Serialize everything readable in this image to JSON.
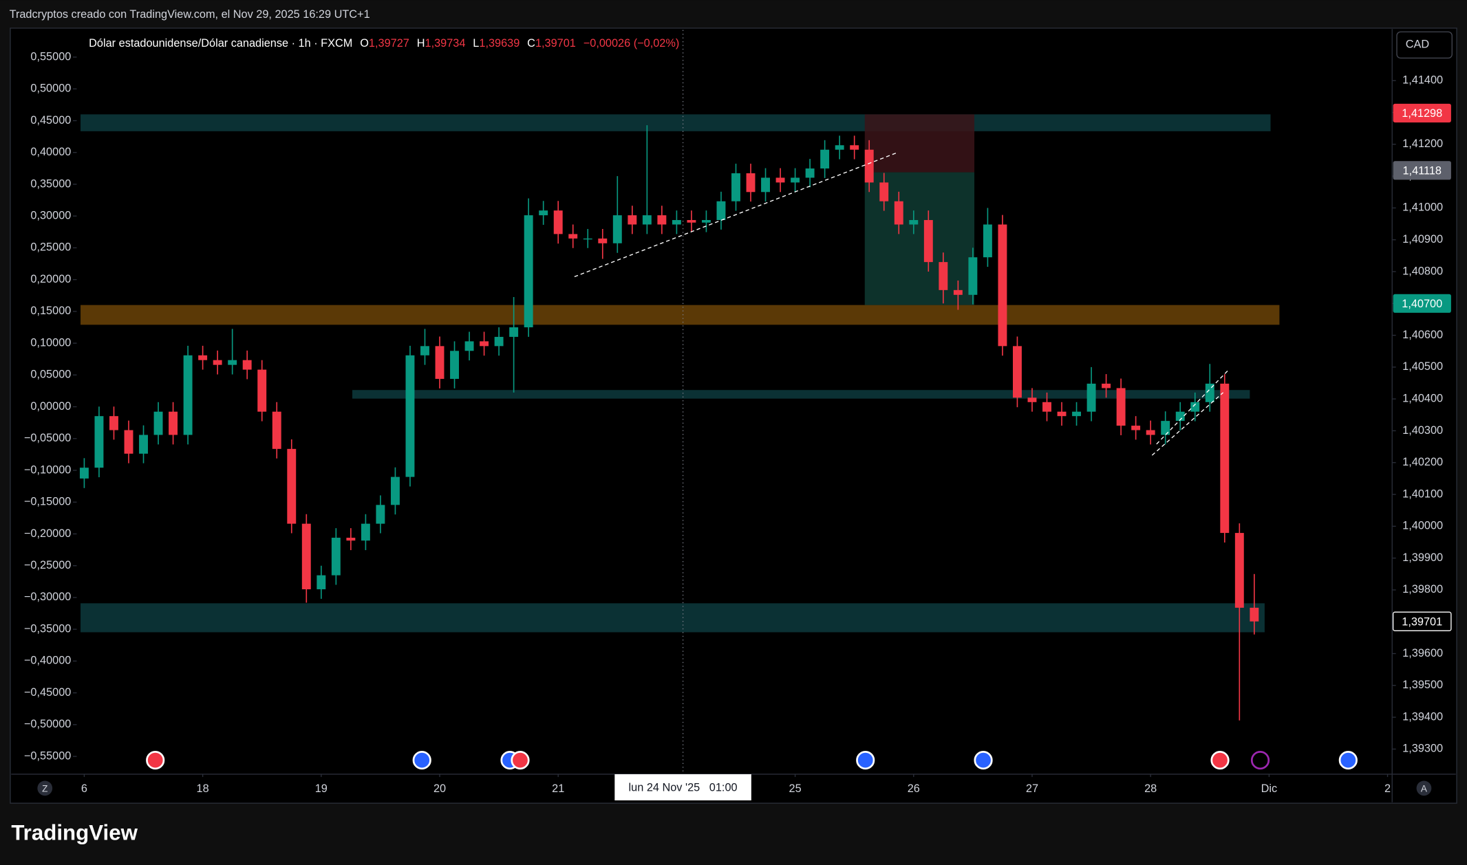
{
  "watermark": "Tradcryptos creado con TradingView.com, el Nov 29, 2025 16:29 UTC+1",
  "brand": "TradingView",
  "chart_data": {
    "type": "candlestick",
    "title": "Dólar estadounidense/Dólar canadiense · 1h · FXCM",
    "ohlc": [
      {
        "key": "O",
        "value": 1.39727,
        "label": "1,39727"
      },
      {
        "key": "H",
        "value": 1.39734,
        "label": "1,39734"
      },
      {
        "key": "L",
        "value": 1.39639,
        "label": "1,39639"
      },
      {
        "key": "C",
        "value": 1.39701,
        "label": "1,39701"
      }
    ],
    "change": "−0,00026 (−0,02%)",
    "currency": "CAD",
    "crosshair_label": "lun 24 Nov '25   01:00",
    "up_color": "#089981",
    "down_color": "#f23645",
    "grid": false,
    "open": [
      1.4015,
      1.40184,
      1.40346,
      1.40302,
      1.40228,
      1.40287,
      1.4036,
      1.40287,
      1.40537,
      1.40522,
      1.40507,
      1.40522,
      1.40492,
      1.4036,
      1.40243,
      1.40008,
      1.39802,
      1.39846,
      1.39964,
      1.39955,
      1.40008,
      1.40067,
      1.40155,
      1.40537,
      1.40566,
      1.40463,
      1.40551,
      1.40581,
      1.40566,
      1.40595,
      1.40625,
      1.40977,
      1.40992,
      1.40918,
      1.40904,
      1.40904,
      1.40889,
      1.40977,
      1.40948,
      1.40977,
      1.40948,
      1.40962,
      1.40954,
      1.40962,
      1.41021,
      1.41109,
      1.4105,
      1.41095,
      1.4108,
      1.41095,
      1.41124,
      1.41183,
      1.41197,
      1.41183,
      1.4108,
      1.41021,
      1.40948,
      1.40962,
      1.4083,
      1.40742,
      1.40727,
      1.40845,
      1.40948,
      1.40566,
      1.40404,
      1.4039,
      1.4036,
      1.40346,
      1.4036,
      1.40448,
      1.40434,
      1.40316,
      1.40302,
      1.40287,
      1.40331,
      1.4036,
      1.4039,
      1.40448,
      1.39979,
      1.39744
    ],
    "high": [
      1.40214,
      1.40376,
      1.40376,
      1.40332,
      1.40317,
      1.4039,
      1.4039,
      1.40567,
      1.40567,
      1.40552,
      1.4062,
      1.40552,
      1.40522,
      1.4039,
      1.40273,
      1.40038,
      1.39876,
      1.39994,
      1.39994,
      1.40038,
      1.40097,
      1.40185,
      1.40567,
      1.4062,
      1.40596,
      1.40581,
      1.40611,
      1.40611,
      1.40625,
      1.4072,
      1.4103,
      1.41022,
      1.41022,
      1.40948,
      1.40934,
      1.40934,
      1.411,
      1.41007,
      1.4126,
      1.41007,
      1.40992,
      1.40992,
      1.40992,
      1.41051,
      1.41139,
      1.41139,
      1.41125,
      1.41125,
      1.41125,
      1.41154,
      1.41213,
      1.41227,
      1.41227,
      1.41213,
      1.4111,
      1.41051,
      1.40992,
      1.40992,
      1.4086,
      1.40772,
      1.40875,
      1.41,
      1.40978,
      1.40596,
      1.40434,
      1.4042,
      1.4039,
      1.4039,
      1.405,
      1.40478,
      1.40464,
      1.40346,
      1.40332,
      1.40361,
      1.4039,
      1.4042,
      1.4051,
      1.40478,
      1.40009,
      1.3985
    ],
    "low": [
      1.4012,
      1.40154,
      1.40272,
      1.40198,
      1.40198,
      1.40257,
      1.40257,
      1.40257,
      1.40492,
      1.40477,
      1.40477,
      1.40462,
      1.4033,
      1.40213,
      1.39978,
      1.3976,
      1.39772,
      1.39816,
      1.39925,
      1.39925,
      1.39978,
      1.40037,
      1.40125,
      1.40507,
      1.40433,
      1.40433,
      1.40521,
      1.40536,
      1.40536,
      1.4042,
      1.40595,
      1.40947,
      1.40888,
      1.40874,
      1.40874,
      1.4084,
      1.40859,
      1.40918,
      1.40918,
      1.40918,
      1.40918,
      1.40924,
      1.40924,
      1.40932,
      1.40991,
      1.4102,
      1.4102,
      1.4105,
      1.4105,
      1.41065,
      1.41094,
      1.41153,
      1.41153,
      1.4105,
      1.40991,
      1.40918,
      1.40918,
      1.408,
      1.407,
      1.4068,
      1.40697,
      1.40815,
      1.40536,
      1.40374,
      1.4036,
      1.4033,
      1.40316,
      1.40316,
      1.4033,
      1.40404,
      1.40286,
      1.40272,
      1.40257,
      1.40257,
      1.40301,
      1.4033,
      1.4036,
      1.39949,
      1.3939,
      1.3966
    ],
    "close": [
      1.40184,
      1.40346,
      1.40302,
      1.40228,
      1.40287,
      1.4036,
      1.40287,
      1.40537,
      1.40522,
      1.40507,
      1.40522,
      1.40492,
      1.4036,
      1.40243,
      1.40008,
      1.39802,
      1.39846,
      1.39964,
      1.39955,
      1.40008,
      1.40067,
      1.40155,
      1.40537,
      1.40566,
      1.40463,
      1.40551,
      1.40581,
      1.40566,
      1.40595,
      1.40625,
      1.40977,
      1.40992,
      1.40918,
      1.40904,
      1.40904,
      1.40889,
      1.40977,
      1.40948,
      1.40977,
      1.40948,
      1.40962,
      1.40954,
      1.40962,
      1.41021,
      1.41109,
      1.4105,
      1.41095,
      1.4108,
      1.41095,
      1.41124,
      1.41183,
      1.41197,
      1.41183,
      1.4108,
      1.41021,
      1.40948,
      1.40962,
      1.4083,
      1.40742,
      1.40727,
      1.40845,
      1.40948,
      1.40566,
      1.40404,
      1.4039,
      1.4036,
      1.40346,
      1.4036,
      1.40448,
      1.40434,
      1.40316,
      1.40302,
      1.40287,
      1.40331,
      1.4036,
      1.4039,
      1.40448,
      1.39979,
      1.39744,
      1.39701
    ],
    "xlim": [
      -4.93,
      88.31
    ],
    "xticks": [
      {
        "value": 0,
        "label": "6"
      },
      {
        "value": 8,
        "label": "18"
      },
      {
        "value": 16,
        "label": "19"
      },
      {
        "value": 24,
        "label": "20"
      },
      {
        "value": 32,
        "label": "21"
      },
      {
        "value": 48,
        "label": "25"
      },
      {
        "value": 56,
        "label": "26"
      },
      {
        "value": 64,
        "label": "27"
      },
      {
        "value": 72,
        "label": "28"
      },
      {
        "value": 80,
        "label": "Dic"
      },
      {
        "value": 88,
        "label": "2"
      }
    ],
    "ylim": [
      1.39221,
      1.41559
    ],
    "yticks": [
      {
        "value": 1.393,
        "label": "1,39300"
      },
      {
        "value": 1.394,
        "label": "1,39400"
      },
      {
        "value": 1.395,
        "label": "1,39500"
      },
      {
        "value": 1.396,
        "label": "1,39600"
      },
      {
        "value": 1.397,
        "label": "1,39700"
      },
      {
        "value": 1.398,
        "label": "1,39800"
      },
      {
        "value": 1.399,
        "label": "1,39900"
      },
      {
        "value": 1.4,
        "label": "1,40000"
      },
      {
        "value": 1.401,
        "label": "1,40100"
      },
      {
        "value": 1.402,
        "label": "1,40200"
      },
      {
        "value": 1.403,
        "label": "1,40300"
      },
      {
        "value": 1.404,
        "label": "1,40400"
      },
      {
        "value": 1.405,
        "label": "1,40500"
      },
      {
        "value": 1.406,
        "label": "1,40600"
      },
      {
        "value": 1.407,
        "label": "1,40700"
      },
      {
        "value": 1.408,
        "label": "1,40800"
      },
      {
        "value": 1.409,
        "label": "1,40900"
      },
      {
        "value": 1.41,
        "label": "1,41000"
      },
      {
        "value": 1.411,
        "label": "1,41100"
      },
      {
        "value": 1.412,
        "label": "1,41200"
      },
      {
        "value": 1.413,
        "label": "1,41300"
      },
      {
        "value": 1.414,
        "label": "1,41400"
      }
    ],
    "y2lim": [
      -0.578,
      0.5926
    ],
    "y2ticks": [
      {
        "value": 0.55,
        "label": "0,55000"
      },
      {
        "value": 0.5,
        "label": "0,50000"
      },
      {
        "value": 0.45,
        "label": "0,45000"
      },
      {
        "value": 0.4,
        "label": "0,40000"
      },
      {
        "value": 0.35,
        "label": "0,35000"
      },
      {
        "value": 0.3,
        "label": "0,30000"
      },
      {
        "value": 0.25,
        "label": "0,25000"
      },
      {
        "value": 0.2,
        "label": "0,20000"
      },
      {
        "value": 0.15,
        "label": "0,15000"
      },
      {
        "value": 0.1,
        "label": "0,10000"
      },
      {
        "value": 0.05,
        "label": "0,05000"
      },
      {
        "value": 0,
        "label": "0,00000"
      },
      {
        "value": -0.05,
        "label": "−0,05000"
      },
      {
        "value": -0.1,
        "label": "−0,10000"
      },
      {
        "value": -0.15,
        "label": "−0,15000"
      },
      {
        "value": -0.2,
        "label": "−0,20000"
      },
      {
        "value": -0.25,
        "label": "−0,25000"
      },
      {
        "value": -0.3,
        "label": "−0,30000"
      },
      {
        "value": -0.35,
        "label": "−0,35000"
      },
      {
        "value": -0.4,
        "label": "−0,40000"
      },
      {
        "value": -0.45,
        "label": "−0,45000"
      },
      {
        "value": -0.5,
        "label": "−0,50000"
      },
      {
        "value": -0.55,
        "label": "−0,55000"
      }
    ],
    "zones": [
      {
        "x": [
          -0.25,
          80.1
        ],
        "y": [
          1.41294,
          1.41241
        ],
        "color": "#0d3a3d"
      },
      {
        "x": [
          -0.25,
          80.7
        ],
        "y": [
          1.40695,
          1.40633
        ],
        "color": "#6b4307"
      },
      {
        "x": [
          18.1,
          78.7
        ],
        "y": [
          1.40428,
          1.40401
        ],
        "color": "#0d3a3d"
      },
      {
        "x": [
          -0.25,
          79.7
        ],
        "y": [
          1.39758,
          1.39667
        ],
        "color": "#0d3a3d"
      },
      {
        "x": [
          52.7,
          60.1
        ],
        "y": [
          1.41294,
          1.41112
        ],
        "color": "#3b1419"
      },
      {
        "x": [
          52.7,
          60.1
        ],
        "y": [
          1.41112,
          1.40695
        ],
        "color": "#0f3b33"
      }
    ],
    "trendlines": [
      {
        "x": [
          33.1,
          54.9
        ],
        "y": [
          1.40784,
          1.41174
        ]
      },
      {
        "x": [
          72.1,
          76.9
        ],
        "y": [
          1.40223,
          1.4042
        ]
      },
      {
        "x": [
          72.4,
          77.3
        ],
        "y": [
          1.40258,
          1.40493
        ]
      }
    ],
    "price_labels": [
      {
        "value": 1.41298,
        "label": "1,41298",
        "color": "#f23645"
      },
      {
        "value": 1.41118,
        "label": "1,41118",
        "color": "#5d606b"
      },
      {
        "value": 1.407,
        "label": "1,40700",
        "color": "#089981"
      },
      {
        "value": 1.39701,
        "label": "1,39701",
        "color": "#000000"
      }
    ]
  }
}
